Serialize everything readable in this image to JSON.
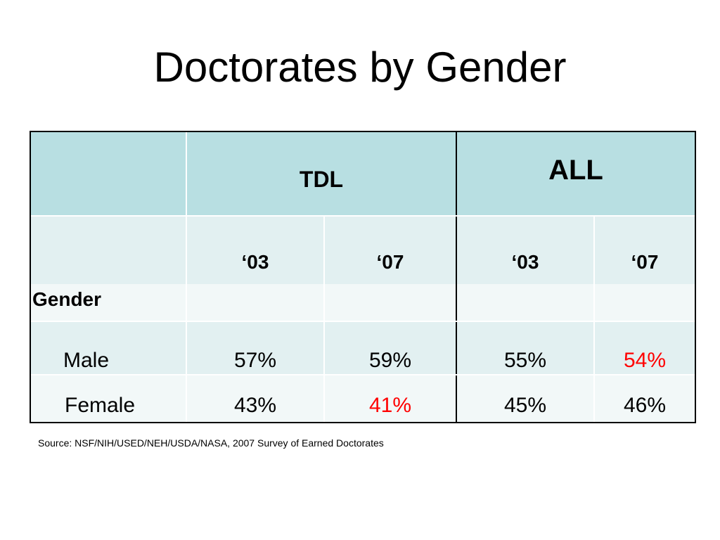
{
  "title": "Doctorates by Gender",
  "colors": {
    "header_fill": "#b8dfe2",
    "band_fill": "#e2f0f1",
    "light_fill": "#f2f8f8",
    "highlight_text": "#ff0000"
  },
  "table": {
    "groups": [
      "TDL",
      "ALL"
    ],
    "years": [
      "‘03",
      "‘07",
      "‘03",
      "‘07"
    ],
    "section_label": "Gender",
    "rows": [
      {
        "label": "Male",
        "values": [
          "57%",
          "59%",
          "55%",
          "54%"
        ]
      },
      {
        "label": "Female",
        "values": [
          "43%",
          "41%",
          "45%",
          "46%"
        ]
      }
    ]
  },
  "source": "Source: NSF/NIH/USED/NEH/USDA/NASA, 2007 Survey of Earned Doctorates"
}
